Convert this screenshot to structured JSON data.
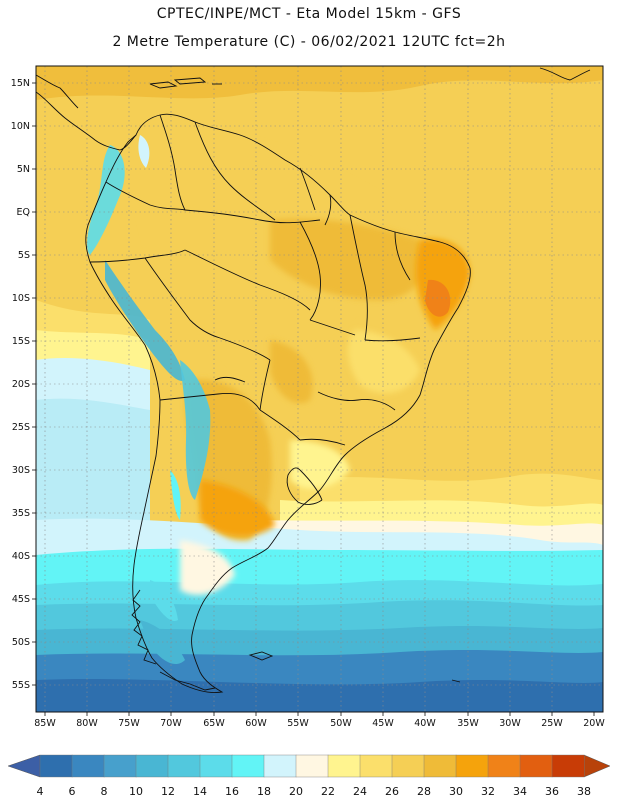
{
  "header": {
    "line1": "CPTEC/INPE/MCT -  Eta Model 15km - GFS",
    "line2": "2 Metre Temperature (C) - 06/02/2021 12UTC fct=2h"
  },
  "map": {
    "lon_range": [
      -86,
      -20
    ],
    "lat_range": [
      17,
      -58
    ],
    "lat_labels": [
      "15N",
      "10N",
      "5N",
      "EQ",
      "5S",
      "10S",
      "15S",
      "20S",
      "25S",
      "30S",
      "35S",
      "40S",
      "45S",
      "50S",
      "55S"
    ],
    "lat_values": [
      15,
      10,
      5,
      0,
      -5,
      -10,
      -15,
      -20,
      -25,
      -30,
      -35,
      -40,
      -45,
      -50,
      -55
    ],
    "lon_labels": [
      "85W",
      "80W",
      "75W",
      "70W",
      "65W",
      "60W",
      "55W",
      "50W",
      "45W",
      "40W",
      "35W",
      "30W",
      "25W",
      "20W"
    ],
    "lon_values": [
      -85,
      -80,
      -75,
      -70,
      -65,
      -60,
      -55,
      -50,
      -45,
      -40,
      -35,
      -30,
      -25,
      -20
    ]
  },
  "colorbar": {
    "values": [
      "4",
      "6",
      "8",
      "10",
      "12",
      "14",
      "16",
      "18",
      "20",
      "22",
      "24",
      "26",
      "28",
      "30",
      "32",
      "34",
      "36",
      "38"
    ],
    "colors": [
      "#2e6fae",
      "#3a87c0",
      "#47a0cc",
      "#49b6d3",
      "#52c8dd",
      "#5cdcea",
      "#62f4f6",
      "#d2f4fc",
      "#fff7e2",
      "#fff48f",
      "#fbdf6b",
      "#f5cf55",
      "#efbb38",
      "#f5a30c",
      "#f08218",
      "#e25f10",
      "#c83c06"
    ],
    "left_arrow_color": "#3c5fa6",
    "right_arrow_color": "#b8420a"
  }
}
